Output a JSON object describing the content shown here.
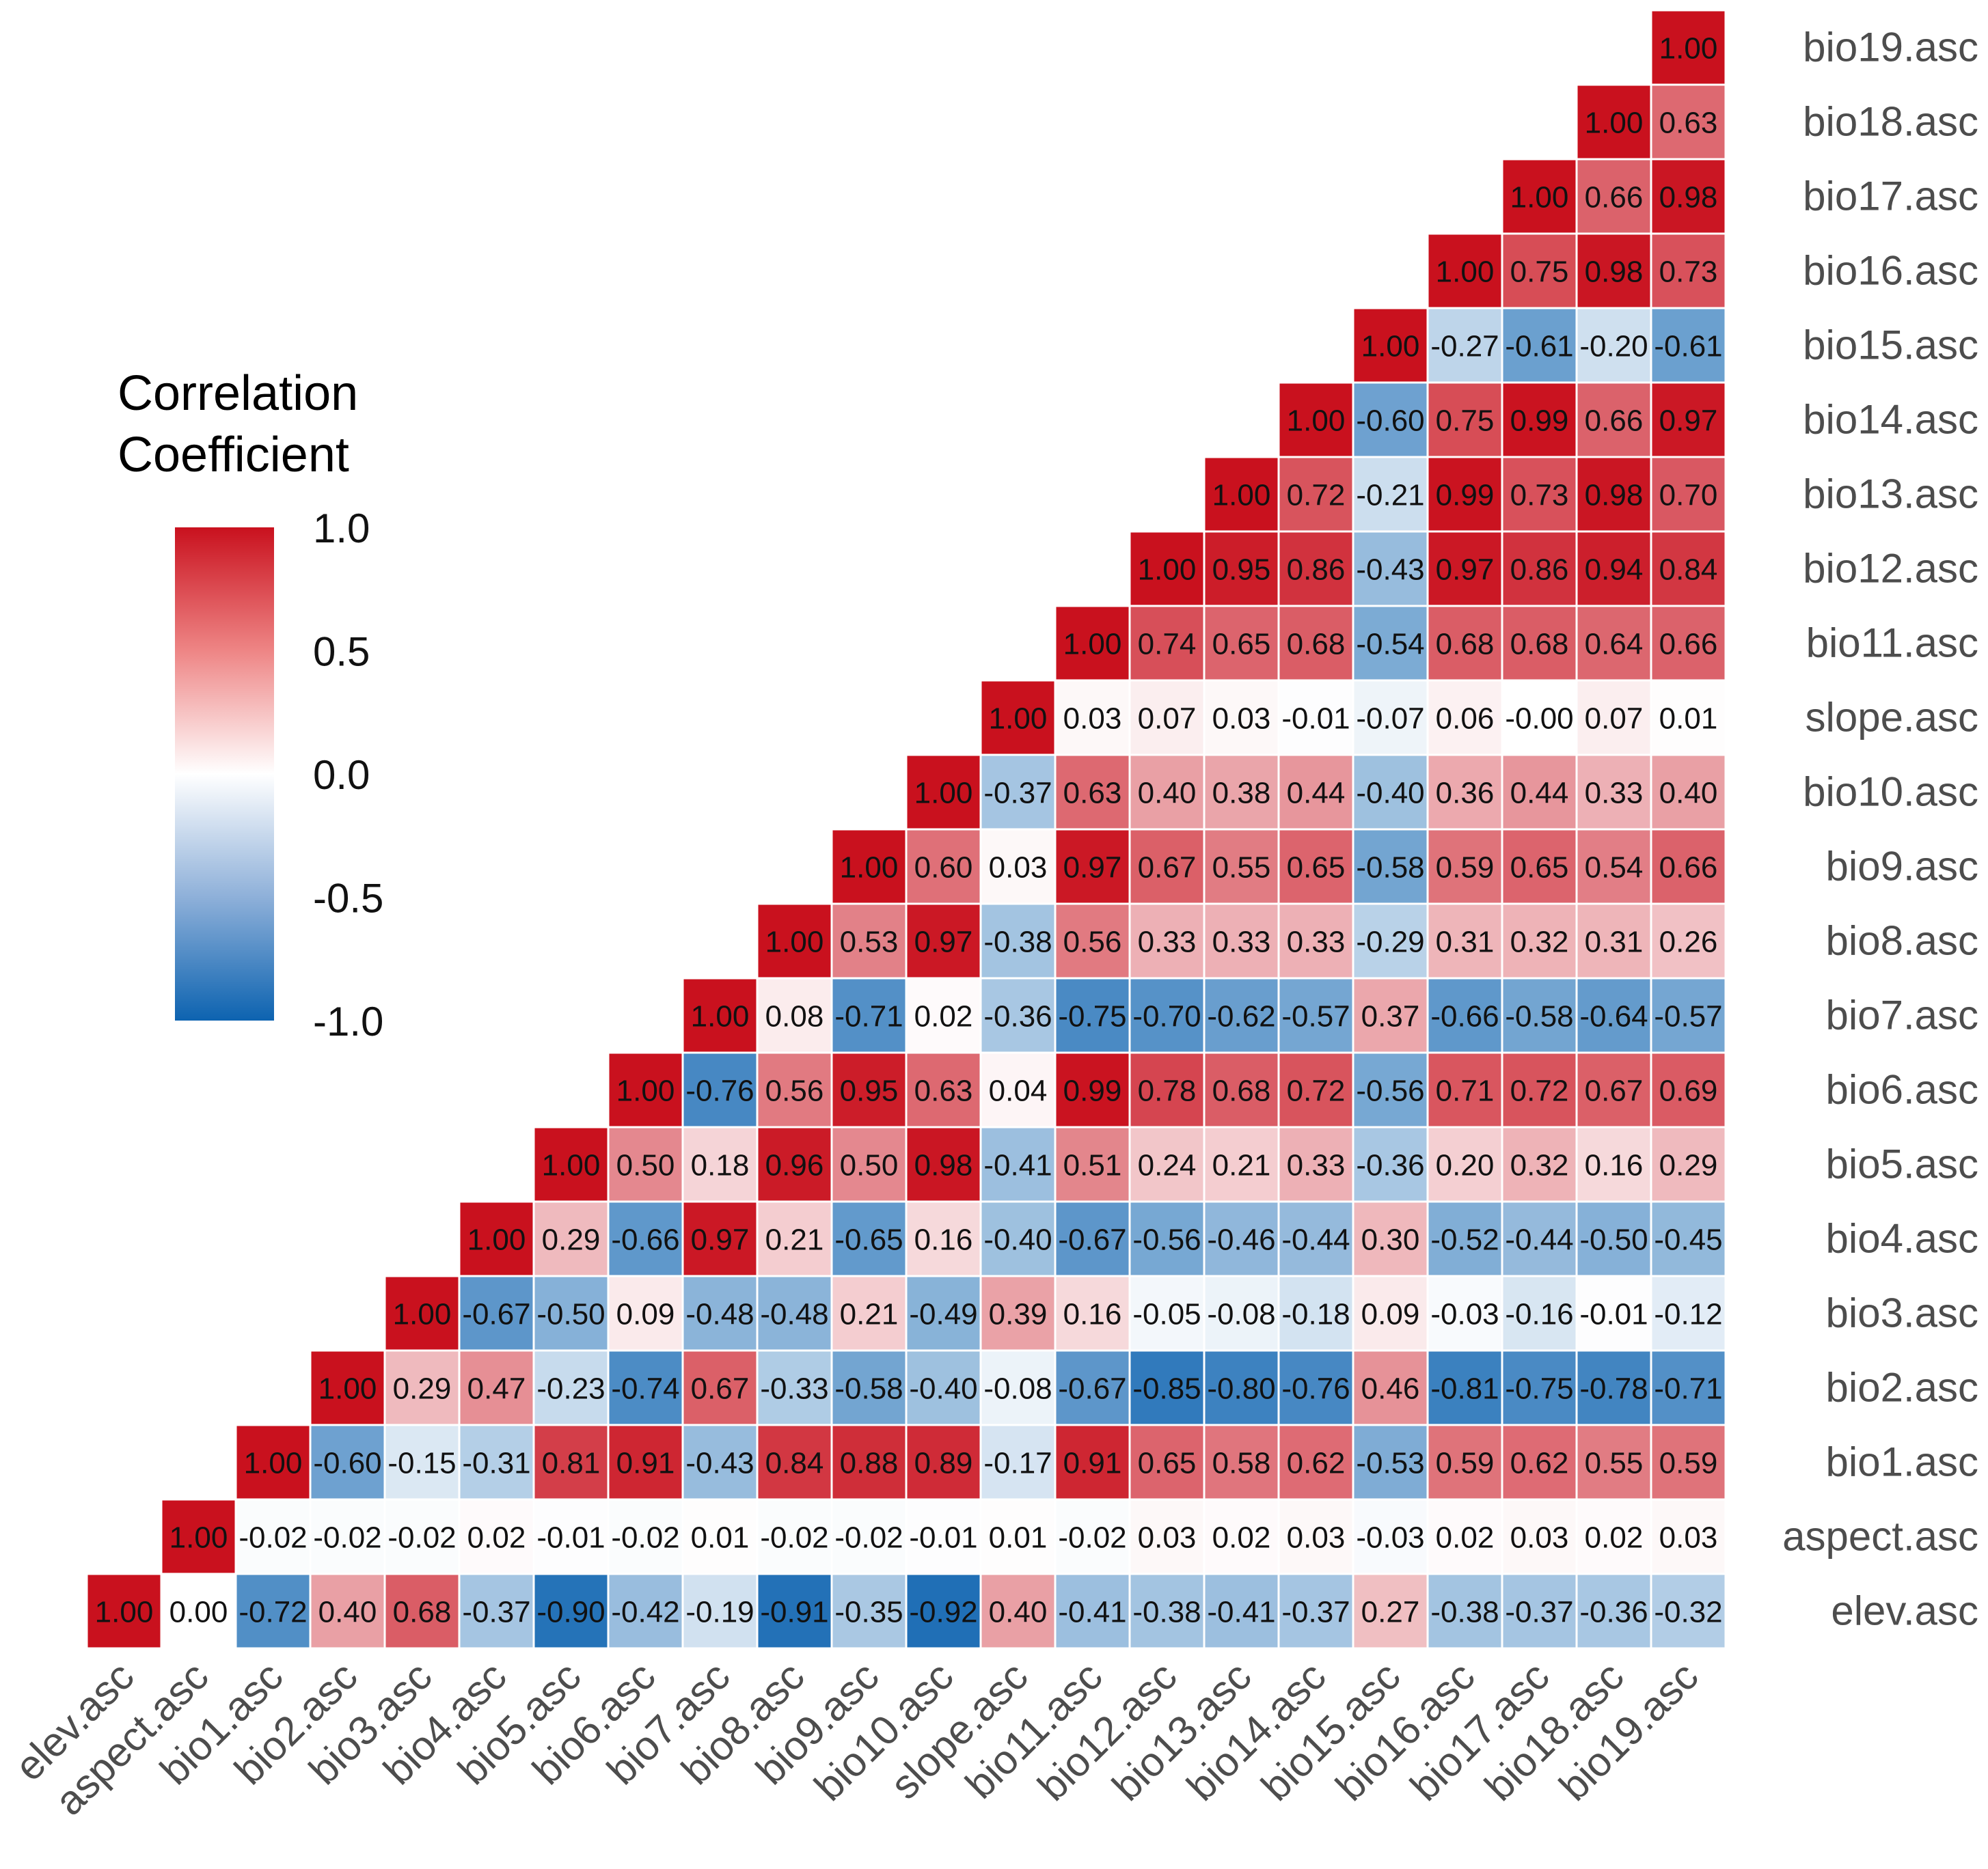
{
  "chart_data": {
    "type": "heatmap",
    "subtype": "lower-triangle-correlation",
    "variables": [
      "elev.asc",
      "aspect.asc",
      "bio1.asc",
      "bio2.asc",
      "bio3.asc",
      "bio4.asc",
      "bio5.asc",
      "bio6.asc",
      "bio7.asc",
      "bio8.asc",
      "bio9.asc",
      "bio10.asc",
      "slope.asc",
      "bio11.asc",
      "bio12.asc",
      "bio13.asc",
      "bio14.asc",
      "bio15.asc",
      "bio16.asc",
      "bio17.asc",
      "bio18.asc",
      "bio19.asc"
    ],
    "x_labels": [
      "elev.asc",
      "aspect.asc",
      "bio1.asc",
      "bio2.asc",
      "bio3.asc",
      "bio4.asc",
      "bio5.asc",
      "bio6.asc",
      "bio7.asc",
      "bio8.asc",
      "bio9.asc",
      "bio10.asc",
      "slope.asc",
      "bio11.asc",
      "bio12.asc",
      "bio13.asc",
      "bio14.asc",
      "bio15.asc",
      "bio16.asc",
      "bio17.asc",
      "bio18.asc",
      "bio19.asc"
    ],
    "y_labels": [
      "elev.asc",
      "aspect.asc",
      "bio1.asc",
      "bio2.asc",
      "bio3.asc",
      "bio4.asc",
      "bio5.asc",
      "bio6.asc",
      "bio7.asc",
      "bio8.asc",
      "bio9.asc",
      "bio10.asc",
      "slope.asc",
      "bio11.asc",
      "bio12.asc",
      "bio13.asc",
      "bio14.asc",
      "bio15.asc",
      "bio16.asc",
      "bio17.asc",
      "bio18.asc",
      "bio19.asc"
    ],
    "rows": [
      [
        "1.00",
        "0.00",
        "-0.72",
        "0.40",
        "0.68",
        "-0.37",
        "-0.90",
        "-0.42",
        "-0.19",
        "-0.91",
        "-0.35",
        "-0.92",
        "0.40",
        "-0.41",
        "-0.38",
        "-0.41",
        "-0.37",
        "0.27",
        "-0.38",
        "-0.37",
        "-0.36",
        "-0.32"
      ],
      [
        "1.00",
        "-0.02",
        "-0.02",
        "-0.02",
        "0.02",
        "-0.01",
        "-0.02",
        "0.01",
        "-0.02",
        "-0.02",
        "-0.01",
        "0.01",
        "-0.02",
        "0.03",
        "0.02",
        "0.03",
        "-0.03",
        "0.02",
        "0.03",
        "0.02",
        "0.03"
      ],
      [
        "1.00",
        "-0.60",
        "-0.15",
        "-0.31",
        "0.81",
        "0.91",
        "-0.43",
        "0.84",
        "0.88",
        "0.89",
        "-0.17",
        "0.91",
        "0.65",
        "0.58",
        "0.62",
        "-0.53",
        "0.59",
        "0.62",
        "0.55",
        "0.59"
      ],
      [
        "1.00",
        "0.29",
        "0.47",
        "-0.23",
        "-0.74",
        "0.67",
        "-0.33",
        "-0.58",
        "-0.40",
        "-0.08",
        "-0.67",
        "-0.85",
        "-0.80",
        "-0.76",
        "0.46",
        "-0.81",
        "-0.75",
        "-0.78",
        "-0.71"
      ],
      [
        "1.00",
        "-0.67",
        "-0.50",
        "0.09",
        "-0.48",
        "-0.48",
        "0.21",
        "-0.49",
        "0.39",
        "0.16",
        "-0.05",
        "-0.08",
        "-0.18",
        "0.09",
        "-0.03",
        "-0.16",
        "-0.01",
        "-0.12"
      ],
      [
        "1.00",
        "0.29",
        "-0.66",
        "0.97",
        "0.21",
        "-0.65",
        "0.16",
        "-0.40",
        "-0.67",
        "-0.56",
        "-0.46",
        "-0.44",
        "0.30",
        "-0.52",
        "-0.44",
        "-0.50",
        "-0.45"
      ],
      [
        "1.00",
        "0.50",
        "0.18",
        "0.96",
        "0.50",
        "0.98",
        "-0.41",
        "0.51",
        "0.24",
        "0.21",
        "0.33",
        "-0.36",
        "0.20",
        "0.32",
        "0.16",
        "0.29"
      ],
      [
        "1.00",
        "-0.76",
        "0.56",
        "0.95",
        "0.63",
        "0.04",
        "0.99",
        "0.78",
        "0.68",
        "0.72",
        "-0.56",
        "0.71",
        "0.72",
        "0.67",
        "0.69"
      ],
      [
        "1.00",
        "0.08",
        "-0.71",
        "0.02",
        "-0.36",
        "-0.75",
        "-0.70",
        "-0.62",
        "-0.57",
        "0.37",
        "-0.66",
        "-0.58",
        "-0.64",
        "-0.57"
      ],
      [
        "1.00",
        "0.53",
        "0.97",
        "-0.38",
        "0.56",
        "0.33",
        "0.33",
        "0.33",
        "-0.29",
        "0.31",
        "0.32",
        "0.31",
        "0.26"
      ],
      [
        "1.00",
        "0.60",
        "0.03",
        "0.97",
        "0.67",
        "0.55",
        "0.65",
        "-0.58",
        "0.59",
        "0.65",
        "0.54",
        "0.66"
      ],
      [
        "1.00",
        "-0.37",
        "0.63",
        "0.40",
        "0.38",
        "0.44",
        "-0.40",
        "0.36",
        "0.44",
        "0.33",
        "0.40"
      ],
      [
        "1.00",
        "0.03",
        "0.07",
        "0.03",
        "-0.01",
        "-0.07",
        "0.06",
        "-0.00",
        "0.07",
        "0.01"
      ],
      [
        "1.00",
        "0.74",
        "0.65",
        "0.68",
        "-0.54",
        "0.68",
        "0.68",
        "0.64",
        "0.66"
      ],
      [
        "1.00",
        "0.95",
        "0.86",
        "-0.43",
        "0.97",
        "0.86",
        "0.94",
        "0.84"
      ],
      [
        "1.00",
        "0.72",
        "-0.21",
        "0.99",
        "0.73",
        "0.98",
        "0.70"
      ],
      [
        "1.00",
        "-0.60",
        "0.75",
        "0.99",
        "0.66",
        "0.97"
      ],
      [
        "1.00",
        "-0.27",
        "-0.61",
        "-0.20",
        "-0.61"
      ],
      [
        "1.00",
        "0.75",
        "0.98",
        "0.73"
      ],
      [
        "1.00",
        "0.66",
        "0.98"
      ],
      [
        "1.00",
        "0.63"
      ],
      [
        "1.00"
      ]
    ],
    "legend": {
      "title_line1": "Correlation",
      "title_line2": "Coefficient",
      "ticks": [
        "1.0",
        "0.5",
        "0.0",
        "-0.5",
        "-1.0"
      ],
      "range": [
        -1,
        1
      ],
      "placement": "left"
    },
    "colors": {
      "high": "#c9111e",
      "mid": "#ffffff",
      "low": "#0d63b0",
      "grid": "#ffffff",
      "cell_text": "#111111",
      "axis_text": "#4d4d4d"
    }
  }
}
